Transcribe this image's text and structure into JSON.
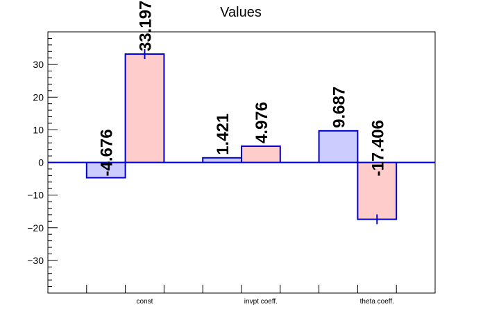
{
  "chart_data": {
    "type": "bar",
    "title": "Values",
    "categories": [
      "const",
      "invpt coeff.",
      "theta coeff."
    ],
    "series": [
      {
        "values": [
          -4.676,
          1.421,
          9.687
        ],
        "labels": [
          "-4.676",
          "1.421",
          "9.687"
        ],
        "errors": [
          0,
          0,
          0
        ],
        "fill": "#ccccff",
        "stroke": "#0000cc"
      },
      {
        "values": [
          33.197,
          4.976,
          -17.406
        ],
        "labels": [
          "33.197",
          "4.976",
          "-17.406"
        ],
        "errors": [
          1.5,
          0,
          1.5
        ],
        "fill": "#ffcccc",
        "stroke": "#0000cc"
      }
    ],
    "ylim": [
      -40,
      40
    ],
    "yticks": [
      -30,
      -20,
      -10,
      0,
      10,
      20,
      30
    ],
    "ytick_labels": [
      "−30",
      "−20",
      "−10",
      "0",
      "10",
      "20",
      "30"
    ],
    "xlabel": "",
    "ylabel": "",
    "grid": false,
    "zero_line_color": "#0000cc"
  }
}
